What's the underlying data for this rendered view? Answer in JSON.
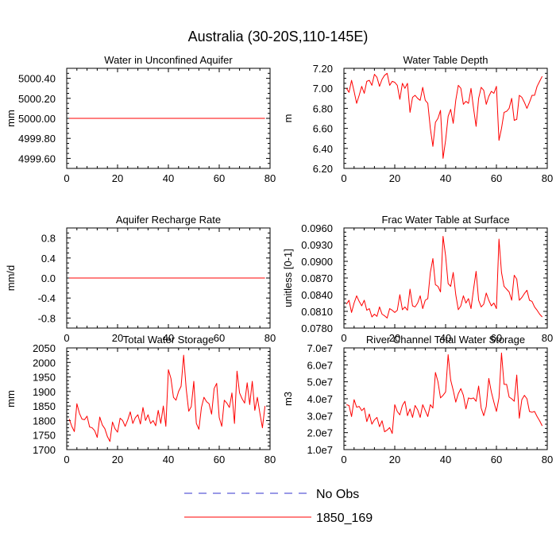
{
  "figure": {
    "title": "Australia (30-20S,110-145E)",
    "legend": [
      {
        "label": "No Obs",
        "color": "#3333cc",
        "dash": true
      },
      {
        "label": "1850_169",
        "color": "#ff0000",
        "dash": false
      }
    ]
  },
  "chart_data": [
    {
      "type": "line",
      "title": "Water in Unconfined Aquifer",
      "ylabel": "mm",
      "xlim": [
        0,
        80
      ],
      "ylim": [
        4999.5,
        5000.5
      ],
      "xticks": [
        0,
        20,
        40,
        60,
        80
      ],
      "xtick_labels": [
        "0",
        "20",
        "40",
        "60",
        "80"
      ],
      "yticks": [
        4999.6,
        4999.8,
        5000.0,
        5000.2,
        5000.4
      ],
      "ytick_labels": [
        "4999.60",
        "4999.80",
        "5000.00",
        "5000.20",
        "5000.40"
      ],
      "series": [
        {
          "name": "1850_169",
          "color": "#ff0000",
          "x_start": 1,
          "x_step": 1,
          "values": [
            5000,
            5000,
            5000,
            5000,
            5000,
            5000,
            5000,
            5000,
            5000,
            5000,
            5000,
            5000,
            5000,
            5000,
            5000,
            5000,
            5000,
            5000,
            5000,
            5000,
            5000,
            5000,
            5000,
            5000,
            5000,
            5000,
            5000,
            5000,
            5000,
            5000,
            5000,
            5000,
            5000,
            5000,
            5000,
            5000,
            5000,
            5000,
            5000,
            5000,
            5000,
            5000,
            5000,
            5000,
            5000,
            5000,
            5000,
            5000,
            5000,
            5000,
            5000,
            5000,
            5000,
            5000,
            5000,
            5000,
            5000,
            5000,
            5000,
            5000,
            5000,
            5000,
            5000,
            5000,
            5000,
            5000,
            5000,
            5000,
            5000,
            5000,
            5000,
            5000,
            5000,
            5000,
            5000,
            5000,
            5000,
            5000
          ]
        }
      ]
    },
    {
      "type": "line",
      "title": "Water Table Depth",
      "ylabel": "m",
      "xlim": [
        0,
        80
      ],
      "ylim": [
        6.2,
        7.2
      ],
      "xticks": [
        0,
        20,
        40,
        60,
        80
      ],
      "xtick_labels": [
        "0",
        "20",
        "40",
        "60",
        "80"
      ],
      "yticks": [
        6.2,
        6.4,
        6.6,
        6.8,
        7.0,
        7.2
      ],
      "ytick_labels": [
        "6.20",
        "6.40",
        "6.60",
        "6.80",
        "7.00",
        "7.20"
      ],
      "series": [
        {
          "name": "1850_169",
          "color": "#ff0000",
          "x_start": 1,
          "x_step": 1,
          "values": [
            7.0,
            6.96,
            7.08,
            6.97,
            6.85,
            6.93,
            7.02,
            6.95,
            7.07,
            7.08,
            7.03,
            7.14,
            7.11,
            7.02,
            7.09,
            7.13,
            7.15,
            7.03,
            7.07,
            7.06,
            7.03,
            6.89,
            7.05,
            7.0,
            7.05,
            6.76,
            6.91,
            6.93,
            6.9,
            6.88,
            7.01,
            6.88,
            6.85,
            6.6,
            6.42,
            6.66,
            6.7,
            6.78,
            6.3,
            6.48,
            6.72,
            6.79,
            6.65,
            6.88,
            7.03,
            7.0,
            6.84,
            6.87,
            6.85,
            7.0,
            6.8,
            6.62,
            6.9,
            7.01,
            6.98,
            6.84,
            6.92,
            6.97,
            6.95,
            7.02,
            6.48,
            6.6,
            6.76,
            6.77,
            6.8,
            6.9,
            6.68,
            6.69,
            6.93,
            6.91,
            6.86,
            6.8,
            6.86,
            6.93,
            6.93,
            7.02,
            7.07,
            7.12
          ]
        }
      ]
    },
    {
      "type": "line",
      "title": "Aquifer Recharge Rate",
      "ylabel": "mm/d",
      "xlim": [
        0,
        80
      ],
      "ylim": [
        -1.0,
        1.0
      ],
      "xticks": [
        0,
        20,
        40,
        60,
        80
      ],
      "xtick_labels": [
        "0",
        "20",
        "40",
        "60",
        "80"
      ],
      "yticks": [
        -0.8,
        -0.4,
        0.0,
        0.4,
        0.8
      ],
      "ytick_labels": [
        "-0.8",
        "-0.4",
        "0.0",
        "0.4",
        "0.8"
      ],
      "series": [
        {
          "name": "1850_169",
          "color": "#ff0000",
          "x_start": 1,
          "x_step": 1,
          "values": [
            0,
            0,
            0,
            0,
            0,
            0,
            0,
            0,
            0,
            0,
            0,
            0,
            0,
            0,
            0,
            0,
            0,
            0,
            0,
            0,
            0,
            0,
            0,
            0,
            0,
            0,
            0,
            0,
            0,
            0,
            0,
            0,
            0,
            0,
            0,
            0,
            0,
            0,
            0,
            0,
            0,
            0,
            0,
            0,
            0,
            0,
            0,
            0,
            0,
            0,
            0,
            0,
            0,
            0,
            0,
            0,
            0,
            0,
            0,
            0,
            0,
            0,
            0,
            0,
            0,
            0,
            0,
            0,
            0,
            0,
            0,
            0,
            0,
            0,
            0,
            0,
            0,
            0
          ]
        }
      ]
    },
    {
      "type": "line",
      "title": "Frac Water Table at Surface",
      "ylabel": "unitless [0-1]",
      "xlim": [
        0,
        80
      ],
      "ylim": [
        0.078,
        0.096
      ],
      "xticks": [
        0,
        20,
        40,
        60,
        80
      ],
      "xtick_labels": [
        "0",
        "20",
        "40",
        "60",
        "80"
      ],
      "yticks": [
        0.078,
        0.081,
        0.084,
        0.087,
        0.09,
        0.093,
        0.096
      ],
      "ytick_labels": [
        "0.0780",
        "0.0810",
        "0.0840",
        "0.0870",
        "0.0900",
        "0.0930",
        "0.0960"
      ],
      "series": [
        {
          "name": "1850_169",
          "color": "#ff0000",
          "x_start": 1,
          "x_step": 1,
          "values": [
            0.0823,
            0.083,
            0.0808,
            0.0825,
            0.0838,
            0.0828,
            0.082,
            0.083,
            0.0812,
            0.0815,
            0.08,
            0.0805,
            0.0801,
            0.0818,
            0.0805,
            0.0802,
            0.0798,
            0.0815,
            0.0812,
            0.0808,
            0.0812,
            0.084,
            0.0813,
            0.0818,
            0.0812,
            0.085,
            0.082,
            0.0818,
            0.0825,
            0.0838,
            0.0815,
            0.083,
            0.0833,
            0.088,
            0.0905,
            0.0858,
            0.0855,
            0.0845,
            0.0945,
            0.091,
            0.086,
            0.0855,
            0.088,
            0.084,
            0.0813,
            0.082,
            0.0838,
            0.0825,
            0.0833,
            0.0815,
            0.085,
            0.0882,
            0.083,
            0.0818,
            0.0823,
            0.0843,
            0.083,
            0.082,
            0.0825,
            0.0815,
            0.094,
            0.088,
            0.0855,
            0.085,
            0.0845,
            0.083,
            0.0875,
            0.0868,
            0.083,
            0.0835,
            0.0842,
            0.0848,
            0.083,
            0.0828,
            0.0818,
            0.0812,
            0.0805,
            0.08
          ]
        }
      ]
    },
    {
      "type": "line",
      "title": "Total Water Storage",
      "ylabel": "mm",
      "xlim": [
        0,
        80
      ],
      "ylim": [
        1700,
        2050
      ],
      "xticks": [
        0,
        20,
        40,
        60,
        80
      ],
      "xtick_labels": [
        "0",
        "20",
        "40",
        "60",
        "80"
      ],
      "yticks": [
        1700,
        1750,
        1800,
        1850,
        1900,
        1950,
        2000,
        2050
      ],
      "ytick_labels": [
        "1700",
        "1750",
        "1800",
        "1850",
        "1900",
        "1950",
        "2000",
        "2050"
      ],
      "series": [
        {
          "name": "1850_169",
          "color": "#ff0000",
          "x_start": 1,
          "x_step": 1,
          "values": [
            1805,
            1780,
            1762,
            1858,
            1825,
            1805,
            1803,
            1815,
            1778,
            1775,
            1765,
            1742,
            1812,
            1785,
            1772,
            1745,
            1728,
            1795,
            1772,
            1760,
            1808,
            1800,
            1780,
            1802,
            1830,
            1790,
            1810,
            1820,
            1788,
            1845,
            1800,
            1820,
            1790,
            1800,
            1782,
            1835,
            1790,
            1850,
            1780,
            1975,
            1945,
            1880,
            1870,
            1900,
            1918,
            2025,
            1910,
            1832,
            1848,
            1935,
            1790,
            1770,
            1845,
            1880,
            1865,
            1858,
            1822,
            1910,
            1928,
            1810,
            1780,
            1870,
            1860,
            1845,
            1895,
            1790,
            1970,
            1895,
            1875,
            1860,
            1930,
            1855,
            1935,
            1835,
            1880,
            1825,
            1775,
            1850
          ]
        }
      ]
    },
    {
      "type": "line",
      "title": "River Channel Total Water Storage",
      "ylabel": "m3",
      "xlim": [
        0,
        80
      ],
      "ylim": [
        10000000,
        70000000
      ],
      "xticks": [
        0,
        20,
        40,
        60,
        80
      ],
      "xtick_labels": [
        "0",
        "20",
        "40",
        "60",
        "80"
      ],
      "yticks": [
        10000000,
        20000000,
        30000000,
        40000000,
        50000000,
        60000000,
        70000000
      ],
      "ytick_labels": [
        "1.0e7",
        "2.0e7",
        "3.0e7",
        "4.0e7",
        "5.0e7",
        "6.0e7",
        "7.0e7"
      ],
      "series": [
        {
          "name": "1850_169",
          "color": "#ff0000",
          "x_start": 1,
          "x_step": 1,
          "values": [
            36500000,
            36000000,
            29500000,
            39500000,
            35000000,
            35500000,
            33000000,
            34500000,
            26500000,
            31000000,
            25000000,
            27500000,
            29000000,
            23500000,
            27000000,
            20500000,
            21500000,
            23000000,
            19500000,
            36500000,
            32500000,
            30500000,
            36000000,
            38500000,
            30000000,
            34000000,
            29000000,
            36000000,
            33500000,
            29000000,
            36500000,
            33000000,
            29500000,
            36500000,
            34500000,
            55500000,
            50000000,
            40500000,
            42000000,
            44000000,
            66000000,
            51000000,
            45000000,
            38000000,
            43000000,
            46000000,
            42000000,
            34000000,
            40500000,
            40000000,
            40500000,
            38500000,
            47500000,
            34500000,
            30000000,
            35500000,
            52000000,
            44000000,
            38000000,
            32500000,
            40500000,
            67000000,
            48500000,
            48500000,
            41000000,
            40000000,
            38500000,
            54000000,
            28500000,
            39500000,
            42000000,
            40000000,
            32500000,
            32000000,
            32500000,
            29500000,
            27000000,
            24000000
          ]
        }
      ]
    }
  ]
}
